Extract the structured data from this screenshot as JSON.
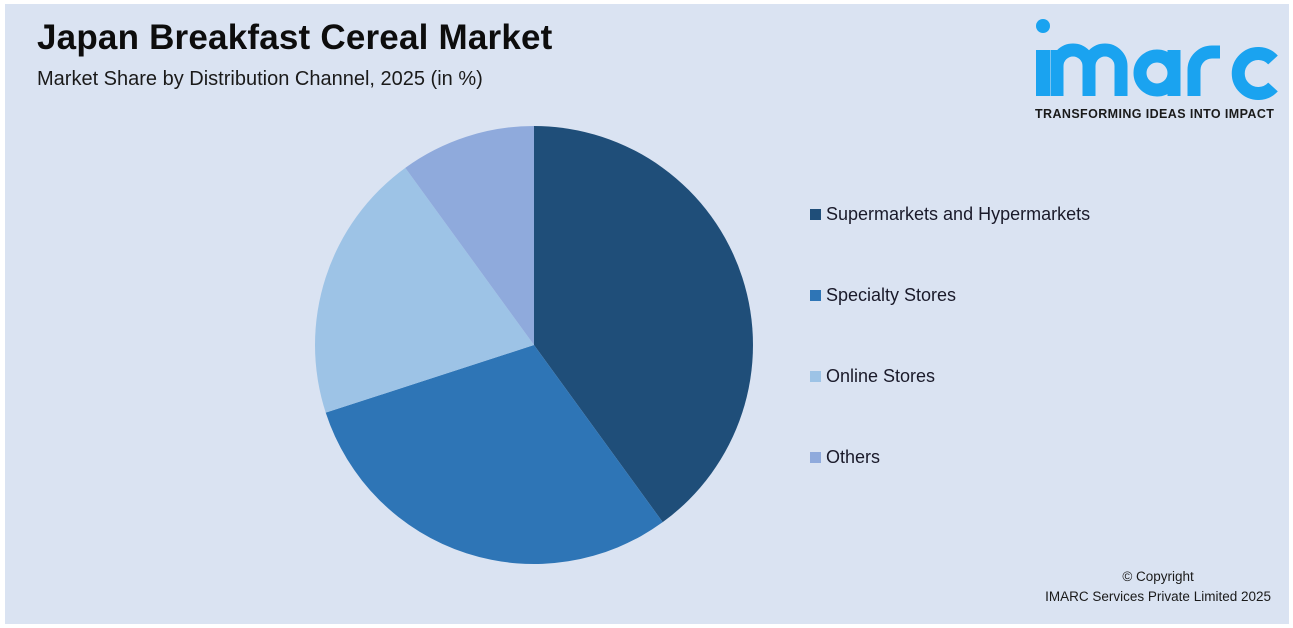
{
  "header": {
    "title": "Japan Breakfast Cereal Market",
    "subtitle": "Market Share by Distribution Channel, 2025 (in %)"
  },
  "logo": {
    "wordmark": "imarc",
    "tagline": "TRANSFORMING IDEAS INTO IMPACT",
    "color": "#1aa3f0"
  },
  "legend": {
    "items": [
      {
        "label": "Supermarkets and Hypermarkets",
        "color": "#1f4e79"
      },
      {
        "label": "Specialty Stores",
        "color": "#2e75b6"
      },
      {
        "label": "Online Stores",
        "color": "#9dc3e6"
      },
      {
        "label": "Others",
        "color": "#8faadc"
      }
    ]
  },
  "footer": {
    "copyright_line1": "© Copyright",
    "copyright_line2": "IMARC Services Private Limited 2025"
  },
  "colors": {
    "background": "#dae3f2",
    "frame": "#ffffff"
  },
  "chart_data": {
    "type": "pie",
    "title": "Japan Breakfast Cereal Market",
    "subtitle": "Market Share by Distribution Channel, 2025 (in %)",
    "categories": [
      "Supermarkets and Hypermarkets",
      "Specialty Stores",
      "Online Stores",
      "Others"
    ],
    "values": [
      40,
      30,
      20,
      10
    ],
    "colors": [
      "#1f4e79",
      "#2e75b6",
      "#9dc3e6",
      "#8faadc"
    ],
    "start_angle_deg": 0,
    "direction": "clockwise",
    "data_labels": false,
    "legend_position": "right",
    "unit": "%"
  }
}
